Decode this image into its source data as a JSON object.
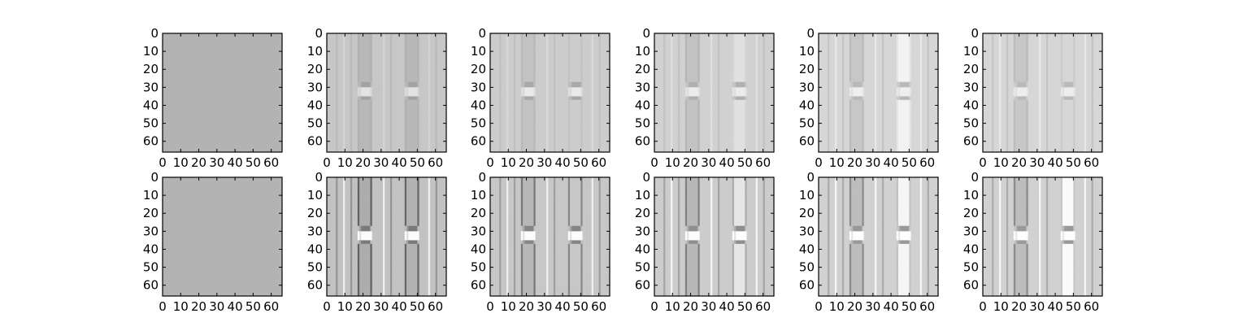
{
  "chart_data": {
    "type": "heatmap",
    "layout": {
      "rows": 2,
      "cols": 6
    },
    "colormap": "gray",
    "xlim": [
      0,
      66
    ],
    "ylim": [
      66,
      0
    ],
    "xticks": [
      0,
      10,
      20,
      30,
      40,
      50,
      60
    ],
    "yticks": [
      0,
      10,
      20,
      30,
      40,
      50,
      60
    ],
    "xtick_labels": [
      "0",
      "10",
      "20",
      "30",
      "40",
      "50",
      "60"
    ],
    "ytick_labels": [
      "0",
      "10",
      "20",
      "30",
      "40",
      "50",
      "60"
    ],
    "structure": {
      "columns": [
        {
          "x_from": 17,
          "x_to": 25
        },
        {
          "x_from": 43,
          "x_to": 51
        }
      ],
      "stripes_x": [
        5,
        9,
        13,
        31,
        35,
        56,
        60
      ],
      "neck_y": [
        27,
        37
      ]
    },
    "panels": [
      {
        "row": 0,
        "col": 0,
        "kind": "uniform",
        "value": 0.7
      },
      {
        "row": 0,
        "col": 1,
        "kind": "pattern",
        "base": 0.78,
        "col_values": [
          0.72,
          0.72
        ],
        "stripe_amp": 0.05,
        "edge_amp": 0.03,
        "neck_amp": 0.14
      },
      {
        "row": 0,
        "col": 2,
        "kind": "pattern",
        "base": 0.8,
        "col_values": [
          0.76,
          0.8
        ],
        "stripe_amp": 0.05,
        "edge_amp": 0.04,
        "neck_amp": 0.14
      },
      {
        "row": 0,
        "col": 3,
        "kind": "pattern",
        "base": 0.82,
        "col_values": [
          0.76,
          0.88
        ],
        "stripe_amp": 0.06,
        "edge_amp": 0.05,
        "neck_amp": 0.13
      },
      {
        "row": 0,
        "col": 4,
        "kind": "pattern",
        "base": 0.84,
        "col_values": [
          0.78,
          0.95
        ],
        "stripe_amp": 0.07,
        "edge_amp": 0.05,
        "neck_amp": 0.12
      },
      {
        "row": 0,
        "col": 5,
        "kind": "pattern",
        "base": 0.84,
        "col_values": [
          0.78,
          0.84
        ],
        "stripe_amp": 0.07,
        "edge_amp": 0.05,
        "neck_amp": 0.11
      },
      {
        "row": 1,
        "col": 0,
        "kind": "uniform",
        "value": 0.7
      },
      {
        "row": 1,
        "col": 1,
        "kind": "pattern",
        "base": 0.76,
        "col_values": [
          0.68,
          0.7
        ],
        "stripe_amp": 0.18,
        "edge_amp": 0.3,
        "neck_amp": 0.28
      },
      {
        "row": 1,
        "col": 2,
        "kind": "pattern",
        "base": 0.78,
        "col_values": [
          0.72,
          0.78
        ],
        "stripe_amp": 0.16,
        "edge_amp": 0.25,
        "neck_amp": 0.26
      },
      {
        "row": 1,
        "col": 3,
        "kind": "pattern",
        "base": 0.8,
        "col_values": [
          0.72,
          0.9
        ],
        "stripe_amp": 0.16,
        "edge_amp": 0.22,
        "neck_amp": 0.24
      },
      {
        "row": 1,
        "col": 4,
        "kind": "pattern",
        "base": 0.82,
        "col_values": [
          0.74,
          0.96
        ],
        "stripe_amp": 0.15,
        "edge_amp": 0.2,
        "neck_amp": 0.22
      },
      {
        "row": 1,
        "col": 5,
        "kind": "pattern",
        "base": 0.82,
        "col_values": [
          0.74,
          0.98
        ],
        "stripe_amp": 0.15,
        "edge_amp": 0.2,
        "neck_amp": 0.22
      }
    ]
  }
}
